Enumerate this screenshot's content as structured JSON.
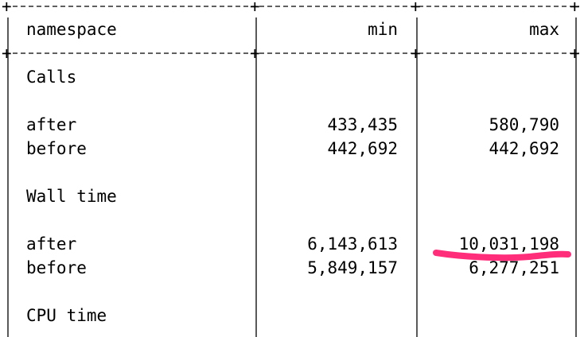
{
  "table": {
    "headers": {
      "namespace": "namespace",
      "min": "min",
      "max": "max"
    },
    "sections": [
      {
        "title": "Calls",
        "rows": [
          {
            "label": "after",
            "min": "433,435",
            "max": "580,790"
          },
          {
            "label": "before",
            "min": "442,692",
            "max": "442,692"
          }
        ]
      },
      {
        "title": "Wall time",
        "rows": [
          {
            "label": "after",
            "min": "6,143,613",
            "max": "10,031,198"
          },
          {
            "label": "before",
            "min": "5,849,157",
            "max": "6,277,251"
          }
        ]
      },
      {
        "title": "CPU time",
        "rows": []
      }
    ]
  },
  "annotation": {
    "kind": "hand-drawn underline",
    "target": "Wall time after max",
    "color": "#ff2d7a"
  }
}
